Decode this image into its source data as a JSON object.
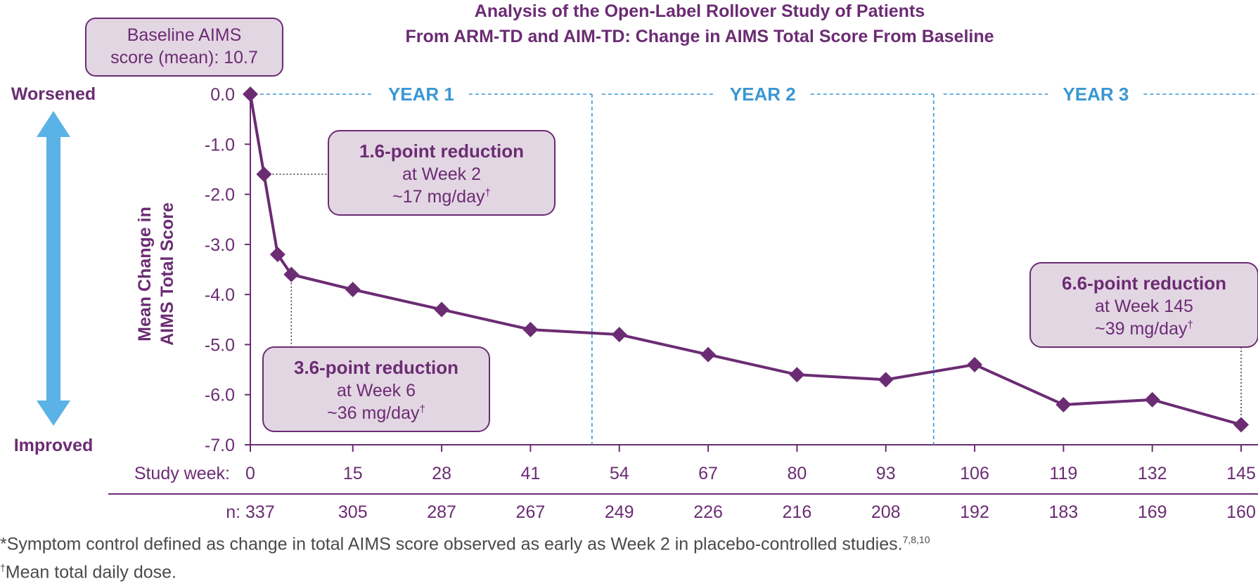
{
  "chart_data": {
    "type": "line",
    "title_lines": [
      "Analysis of the Open-Label Rollover Study of Patients",
      "From ARM-TD and AIM-TD: Change in AIMS Total Score From Baseline"
    ],
    "ylabel_lines": [
      "Mean Change in",
      "AIMS Total Score"
    ],
    "y_ticks": [
      "0.0",
      "-1.0",
      "-2.0",
      "-3.0",
      "-4.0",
      "-5.0",
      "-6.0",
      "-7.0"
    ],
    "ylim": [
      -7,
      0
    ],
    "xlim": [
      0,
      145
    ],
    "x_ticks": [
      0,
      15,
      28,
      41,
      54,
      67,
      80,
      93,
      106,
      119,
      132,
      145
    ],
    "x_tick_labels": [
      "0",
      "15",
      "28",
      "41",
      "54",
      "67",
      "80",
      "93",
      "106",
      "119",
      "132",
      "145"
    ],
    "x_row_label": "Study week:",
    "n_row_label": "n:",
    "n_values": [
      "337",
      "305",
      "287",
      "267",
      "249",
      "226",
      "216",
      "208",
      "192",
      "183",
      "169",
      "160"
    ],
    "series": [
      {
        "x": [
          0,
          2,
          4,
          6,
          15,
          28,
          41,
          54,
          67,
          80,
          93,
          106,
          119,
          132,
          145
        ],
        "y": [
          0.0,
          -1.6,
          -3.2,
          -3.6,
          -3.9,
          -4.3,
          -4.7,
          -4.8,
          -5.2,
          -5.6,
          -5.7,
          -5.4,
          -6.2,
          -6.1,
          -6.6
        ]
      }
    ],
    "year_labels": [
      "YEAR 1",
      "YEAR 2",
      "YEAR 3"
    ],
    "year_dividers_week": [
      50,
      100
    ],
    "direction_labels": {
      "top": "Worsened",
      "bottom": "Improved"
    },
    "baseline_box": [
      "Baseline AIMS",
      "score (mean): 10.7"
    ],
    "annotations": [
      {
        "x": 2,
        "y": -1.6,
        "lines": [
          "1.6-point reduction",
          "at Week 2",
          "~17 mg/day"
        ]
      },
      {
        "x": 6,
        "y": -3.6,
        "lines": [
          "3.6-point reduction",
          "at Week 6",
          "~36 mg/day"
        ]
      },
      {
        "x": 145,
        "y": -6.6,
        "lines": [
          "6.6-point reduction",
          "at Week 145",
          "~39 mg/day"
        ]
      }
    ],
    "dagger": "†",
    "colors": {
      "line": "#6b2c73",
      "box_fill": "#e3d6e3",
      "year": "#3a97d4",
      "arrow": "#5ab2e6"
    }
  },
  "footnotes": {
    "fn1_text": "*Symptom control defined as change in total AIMS score observed as early as Week 2 in placebo-controlled studies.",
    "fn1_refs": "7,8,10",
    "fn2_mark": "†",
    "fn2_text": "Mean total daily dose."
  }
}
